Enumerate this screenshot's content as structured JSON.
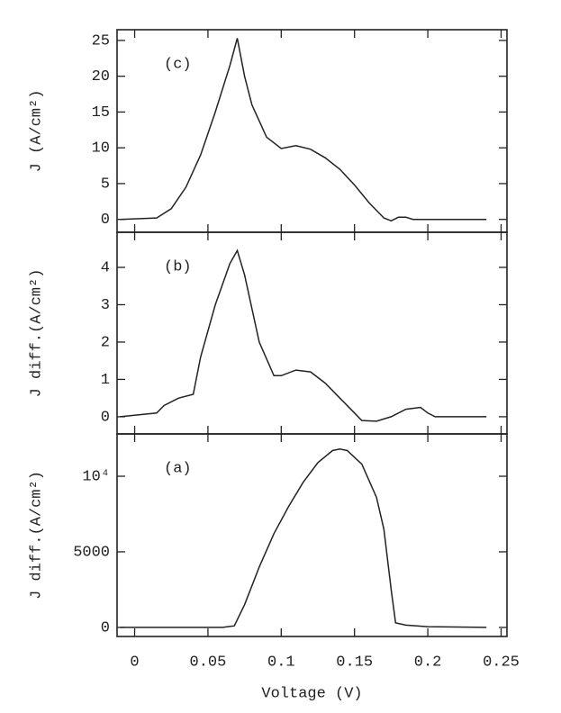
{
  "chart_data": [
    {
      "type": "line",
      "annotation": "(c)",
      "ylabel": "J (A/cm²)",
      "x": [
        -0.01,
        0.015,
        0.025,
        0.035,
        0.045,
        0.055,
        0.065,
        0.07,
        0.075,
        0.08,
        0.09,
        0.1,
        0.11,
        0.12,
        0.13,
        0.14,
        0.15,
        0.16,
        0.17,
        0.175,
        0.18,
        0.185,
        0.19,
        0.2,
        0.22,
        0.24
      ],
      "values": [
        0,
        0.2,
        1.5,
        4.5,
        9,
        15,
        21.5,
        25.3,
        20,
        16,
        11.5,
        9.9,
        10.3,
        9.8,
        8.6,
        7,
        4.8,
        2.3,
        0.2,
        -0.2,
        0.3,
        0.3,
        0,
        0,
        0,
        0
      ],
      "color": "#222222",
      "xlim": [
        -0.012,
        0.254
      ],
      "ylim": [
        -1.8,
        26.5
      ],
      "yticks": [
        0,
        5,
        10,
        15,
        20,
        25
      ]
    },
    {
      "type": "line",
      "annotation": "(b)",
      "ylabel": "J diff.(A/cm²)",
      "x": [
        -0.01,
        0.015,
        0.02,
        0.03,
        0.04,
        0.045,
        0.055,
        0.065,
        0.07,
        0.075,
        0.085,
        0.095,
        0.1,
        0.11,
        0.12,
        0.13,
        0.14,
        0.15,
        0.155,
        0.165,
        0.175,
        0.185,
        0.195,
        0.2,
        0.205,
        0.22,
        0.24
      ],
      "values": [
        0,
        0.1,
        0.3,
        0.5,
        0.6,
        1.6,
        3,
        4.1,
        4.45,
        3.8,
        2,
        1.1,
        1.1,
        1.25,
        1.2,
        0.9,
        0.5,
        0.1,
        -0.1,
        -0.12,
        0,
        0.2,
        0.25,
        0.1,
        0,
        0,
        0
      ],
      "color": "#222222",
      "xlim": [
        -0.012,
        0.254
      ],
      "ylim": [
        -0.46,
        4.94
      ],
      "yticks": [
        0,
        1,
        2,
        3,
        4
      ]
    },
    {
      "type": "line",
      "annotation": "(a)",
      "ylabel": "J diff.(A/cm²)",
      "xlabel": "Voltage (V)",
      "x": [
        -0.01,
        0.06,
        0.068,
        0.075,
        0.085,
        0.095,
        0.105,
        0.115,
        0.125,
        0.135,
        0.14,
        0.145,
        0.155,
        0.165,
        0.17,
        0.175,
        0.178,
        0.185,
        0.2,
        0.24
      ],
      "values": [
        0,
        0,
        100,
        1500,
        4000,
        6200,
        8000,
        9600,
        10900,
        11700,
        11800,
        11700,
        10800,
        8600,
        6500,
        2500,
        300,
        150,
        50,
        0
      ],
      "color": "#222222",
      "xlim": [
        -0.012,
        0.254
      ],
      "ylim": [
        -600,
        12800
      ],
      "yticks": [
        0,
        5000,
        {
          "value": 10000,
          "label": "10⁴"
        }
      ],
      "xticks": [
        0,
        0.05,
        0.1,
        0.15,
        0.2,
        0.25
      ]
    }
  ]
}
